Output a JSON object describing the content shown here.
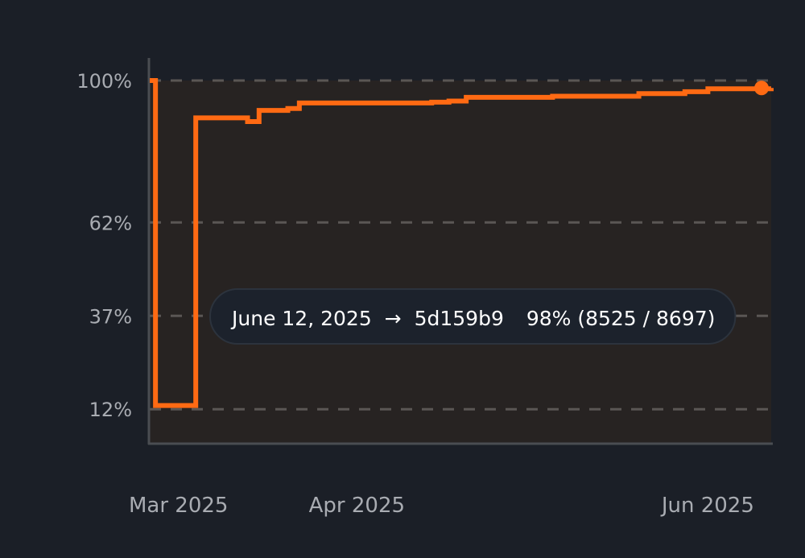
{
  "colors": {
    "background": "#1b1f27",
    "plot_area": "#272322",
    "line": "#ff6a13",
    "grid": "#5a5654",
    "axis": "#4a4d52",
    "tick_text": "#a9acb2",
    "tooltip_bg": "#1c222c",
    "tooltip_text": "#ffffff"
  },
  "chart_data": {
    "type": "line",
    "step": true,
    "grid": true,
    "grid_style": "dashed",
    "ylim": [
      3,
      100
    ],
    "xlim": [
      "2025-02-24",
      "2025-06-12"
    ],
    "y_ticks": [
      100,
      62,
      37,
      12
    ],
    "y_tick_labels": [
      "100%",
      "62%",
      "37%",
      "12%"
    ],
    "x_ticks": [
      "2025-03-01",
      "2025-04-01",
      "2025-06-01"
    ],
    "x_tick_labels": [
      "Mar 2025",
      "Apr 2025",
      "Jun 2025"
    ],
    "series": [
      {
        "x": [
          "2025-02-24",
          "2025-02-25",
          "2025-03-04",
          "2025-03-05",
          "2025-03-13",
          "2025-03-15",
          "2025-03-20",
          "2025-03-22",
          "2025-04-05",
          "2025-04-10",
          "2025-04-14",
          "2025-04-17",
          "2025-04-20",
          "2025-05-05",
          "2025-05-20",
          "2025-05-28",
          "2025-06-01",
          "2025-06-12"
        ],
        "y": [
          100,
          13,
          90,
          90,
          89,
          92,
          92.5,
          94,
          94,
          94,
          94.2,
          94.5,
          95.5,
          95.8,
          96.5,
          97,
          97.8,
          98
        ]
      }
    ],
    "highlight_point": {
      "x": "2025-06-12",
      "y": 98
    },
    "tooltip": {
      "date": "June 12, 2025",
      "arrow": "→",
      "commit": "5d159b9",
      "value": "98% (8525 / 8697)"
    }
  }
}
